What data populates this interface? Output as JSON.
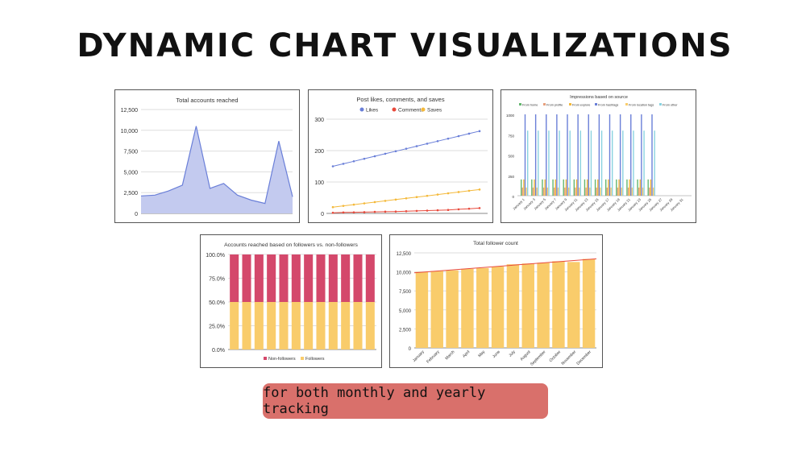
{
  "page": {
    "title": "DYNAMIC CHART VISUALIZATIONS",
    "tagline": "for both monthly and yearly tracking"
  },
  "colors": {
    "blue": "#6a7fd8",
    "blue_fill": "#c3caef",
    "red": "#e84a3c",
    "yellow": "#f4b93a",
    "pink": "#d4486b",
    "orange": "#f9cc6b",
    "tag_bg": "#d9706b",
    "cyan": "#8ad3e0",
    "salmon": "#e7a07e",
    "green": "#64b66f"
  },
  "chart_data": [
    {
      "type": "area",
      "title": "Total accounts reached",
      "ylim": [
        0,
        12500
      ],
      "yticks": [
        "0",
        "2,500",
        "5,000",
        "7,500",
        "10,000",
        "12,500"
      ],
      "ytick_values": [
        0,
        2500,
        5000,
        7500,
        10000,
        12500
      ],
      "values": [
        2100,
        2200,
        2700,
        3400,
        10500,
        3000,
        3600,
        2200,
        1600,
        1200,
        8700,
        2000
      ],
      "grid": true
    },
    {
      "type": "line",
      "title": "Post likes, comments, and saves",
      "ylim": [
        0,
        300
      ],
      "yticks": [
        "0",
        "100",
        "200",
        "300"
      ],
      "ytick_values": [
        0,
        100,
        200,
        300
      ],
      "legend_position": "top",
      "series": [
        {
          "name": "Likes",
          "values": [
            150,
            158,
            166,
            174,
            182,
            190,
            198,
            206,
            214,
            222,
            230,
            238,
            246,
            254,
            262
          ]
        },
        {
          "name": "Comments",
          "values": [
            2,
            3,
            3.5,
            4,
            5,
            5.5,
            6,
            7,
            8,
            9,
            10,
            11,
            13,
            15,
            17
          ]
        },
        {
          "name": "Saves",
          "values": [
            20,
            24,
            28,
            32,
            36,
            40,
            44,
            48,
            52,
            56,
            60,
            64,
            68,
            72,
            76
          ]
        }
      ],
      "grid": true
    },
    {
      "type": "bar",
      "title": "Impressions based on source",
      "ylim": [
        0,
        1000
      ],
      "yticks": [
        "0",
        "250",
        "500",
        "750",
        "1000"
      ],
      "ytick_values": [
        0,
        250,
        500,
        750,
        1000
      ],
      "legend_position": "top",
      "series": [
        {
          "name": "From home",
          "values": [
            200,
            200,
            200,
            200,
            200,
            200,
            200,
            200,
            200,
            200,
            200,
            200,
            200,
            0,
            0,
            0
          ]
        },
        {
          "name": "From profile",
          "values": [
            100,
            100,
            100,
            100,
            100,
            100,
            100,
            100,
            100,
            100,
            100,
            100,
            100,
            0,
            0,
            0
          ]
        },
        {
          "name": "From explore",
          "values": [
            200,
            200,
            200,
            200,
            200,
            200,
            200,
            200,
            200,
            200,
            200,
            200,
            200,
            0,
            0,
            0
          ]
        },
        {
          "name": "From hashtags",
          "values": [
            1000,
            1000,
            1000,
            1000,
            1000,
            1000,
            1000,
            1000,
            1000,
            1000,
            1000,
            1000,
            1000,
            0,
            0,
            0
          ]
        },
        {
          "name": "From location tags",
          "values": [
            100,
            100,
            100,
            100,
            100,
            100,
            100,
            100,
            100,
            100,
            100,
            100,
            100,
            0,
            0,
            0
          ]
        },
        {
          "name": "From other",
          "values": [
            800,
            800,
            800,
            800,
            800,
            800,
            800,
            800,
            800,
            800,
            800,
            800,
            800,
            0,
            0,
            0
          ]
        }
      ],
      "categories": [
        "January 1",
        "January 3",
        "January 5",
        "January 7",
        "January 9",
        "January 11",
        "January 13",
        "January 15",
        "January 17",
        "January 19",
        "January 21",
        "January 23",
        "January 25",
        "January 27",
        "January 29",
        "January 31"
      ],
      "grid": false
    },
    {
      "type": "bar",
      "stacked": true,
      "title": "Accounts reached based on followers vs. non-followers",
      "ylim": [
        0,
        100
      ],
      "yticks": [
        "0.0%",
        "25.0%",
        "50.0%",
        "75.0%",
        "100.0%"
      ],
      "ytick_values": [
        0,
        25,
        50,
        75,
        100
      ],
      "legend_position": "bottom",
      "series": [
        {
          "name": "Followers",
          "values": [
            50,
            50,
            50,
            50,
            50,
            50,
            50,
            50,
            50,
            50,
            50,
            50
          ]
        },
        {
          "name": "Non-followers",
          "values": [
            50,
            50,
            50,
            50,
            50,
            50,
            50,
            50,
            50,
            50,
            50,
            50
          ]
        }
      ],
      "grid": true
    },
    {
      "type": "bar",
      "title": "Total follower count",
      "ylim": [
        0,
        12500
      ],
      "yticks": [
        "0",
        "2,500",
        "5,000",
        "7,500",
        "10,000",
        "12,500"
      ],
      "ytick_values": [
        0,
        2500,
        5000,
        7500,
        10000,
        12500
      ],
      "categories": [
        "January",
        "February",
        "March",
        "April",
        "May",
        "June",
        "July",
        "August",
        "September",
        "October",
        "November",
        "December"
      ],
      "values": [
        10000,
        10100,
        10200,
        10400,
        10500,
        10700,
        11000,
        11100,
        11200,
        11400,
        11300,
        11700
      ],
      "trendline": true,
      "grid": true
    }
  ]
}
